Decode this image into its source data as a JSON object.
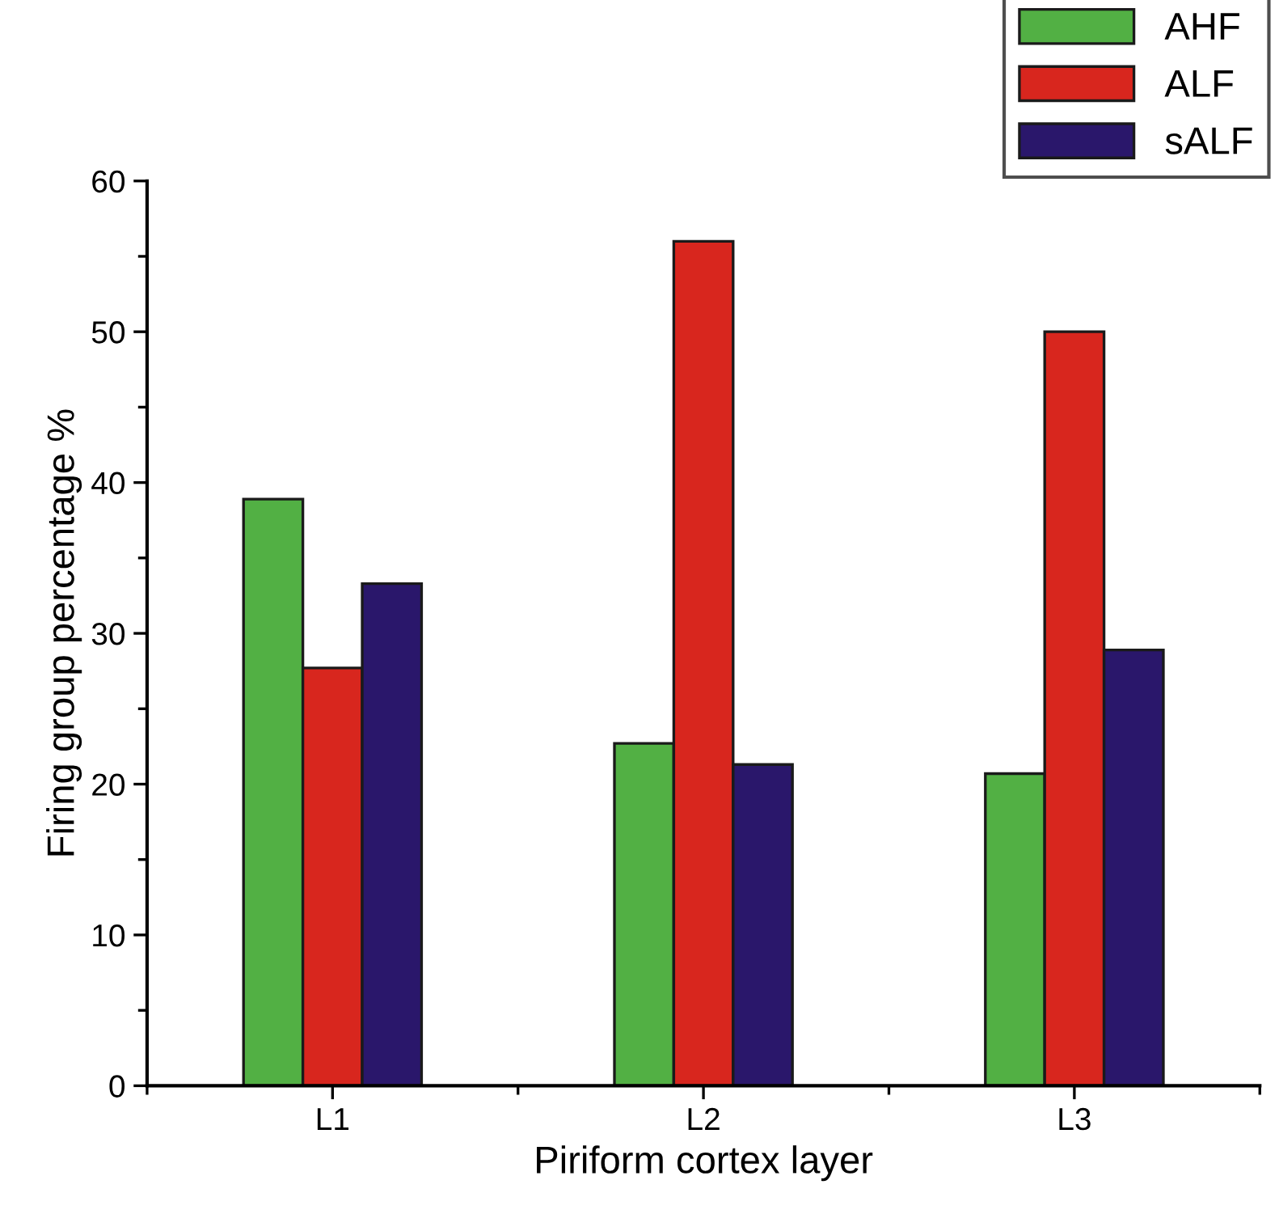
{
  "chart_data": {
    "type": "bar",
    "xlabel": "Piriform cortex layer",
    "ylabel": "Firing group percentage %",
    "categories": [
      "L1",
      "L2",
      "L3"
    ],
    "series": [
      {
        "name": "AHF",
        "color": "#52b044",
        "values": [
          38.9,
          22.7,
          20.7
        ]
      },
      {
        "name": "ALF",
        "color": "#d8261e",
        "values": [
          27.7,
          56.0,
          50.0
        ]
      },
      {
        "name": "sALF",
        "color": "#2a176b",
        "values": [
          33.3,
          21.3,
          28.9
        ]
      }
    ],
    "ylim": [
      0,
      60
    ],
    "yticks": [
      0,
      10,
      20,
      30,
      40,
      50,
      60
    ],
    "grid": false,
    "legend": "top right"
  }
}
